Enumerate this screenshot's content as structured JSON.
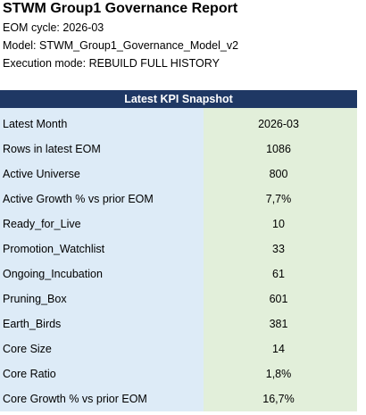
{
  "header": {
    "title": "STWM Group1 Governance Report",
    "lines": [
      "EOM cycle: 2026-03",
      "Model: STWM_Group1_Governance_Model_v2",
      "Execution mode: REBUILD FULL HISTORY"
    ]
  },
  "table": {
    "title": "Latest KPI Snapshot",
    "rows": [
      [
        "Latest Month",
        "2026-03"
      ],
      [
        "Rows in latest EOM",
        "1086"
      ],
      [
        "Active Universe",
        "800"
      ],
      [
        "Active Growth % vs prior EOM",
        "7,7%"
      ],
      [
        "Ready_for_Live",
        "10"
      ],
      [
        "Promotion_Watchlist",
        "33"
      ],
      [
        "Ongoing_Incubation",
        "61"
      ],
      [
        "Pruning_Box",
        "601"
      ],
      [
        "Earth_Birds",
        "381"
      ],
      [
        "Core Size",
        "14"
      ],
      [
        "Core Ratio",
        "1,8%"
      ],
      [
        "Core Growth % vs prior EOM",
        "16,7%"
      ]
    ]
  }
}
